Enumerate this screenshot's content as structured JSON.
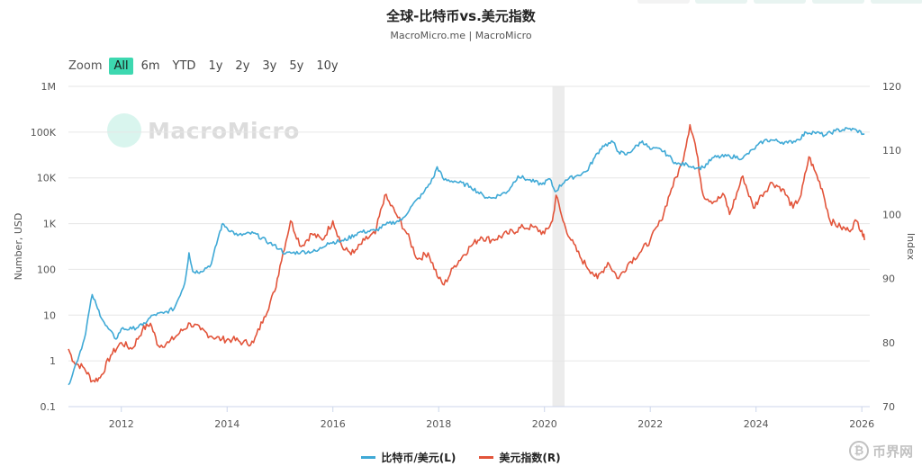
{
  "title": "全球-比特币vs.美元指数",
  "subtitle": "MacroMicro.me | MacroMicro",
  "watermark": "MacroMicro",
  "corner_watermark": "币界网",
  "zoom": {
    "label": "Zoom",
    "options": [
      "All",
      "6m",
      "YTD",
      "1y",
      "2y",
      "3y",
      "5y",
      "10y"
    ],
    "selected": "All"
  },
  "colors": {
    "btc": "#3fa9d6",
    "dxy": "#e2543a",
    "recession": "#ececec",
    "grid": "#e6e6e6"
  },
  "chart_data": {
    "type": "line",
    "title": "全球-比特币vs.美元指数",
    "x": {
      "type": "time",
      "range": [
        2011.0,
        2026.15
      ],
      "ticks": [
        "2012",
        "2014",
        "2016",
        "2018",
        "2020",
        "2022",
        "2024",
        "2026"
      ]
    },
    "y_left": {
      "label": "Number, USD",
      "scale": "log",
      "range": [
        0.1,
        1000000
      ],
      "ticks": [
        "0.1",
        "1",
        "10",
        "100",
        "1K",
        "10K",
        "100K",
        "1M"
      ]
    },
    "y_right": {
      "label": "Index",
      "scale": "linear",
      "range": [
        70,
        120
      ],
      "ticks": [
        "70",
        "80",
        "90",
        "100",
        "110",
        "120"
      ]
    },
    "shaded_periods": [
      [
        2020.15,
        2020.38
      ]
    ],
    "series": [
      {
        "name": "比特币/美元(L)",
        "axis": "left",
        "color": "#3fa9d6",
        "points": [
          [
            2011.0,
            0.3
          ],
          [
            2011.15,
            0.9
          ],
          [
            2011.3,
            3
          ],
          [
            2011.45,
            28
          ],
          [
            2011.55,
            14
          ],
          [
            2011.7,
            6
          ],
          [
            2011.9,
            3
          ],
          [
            2012.0,
            5
          ],
          [
            2012.2,
            5
          ],
          [
            2012.4,
            6
          ],
          [
            2012.6,
            10
          ],
          [
            2012.8,
            11
          ],
          [
            2013.0,
            14
          ],
          [
            2013.2,
            50
          ],
          [
            2013.28,
            230
          ],
          [
            2013.35,
            90
          ],
          [
            2013.5,
            90
          ],
          [
            2013.7,
            130
          ],
          [
            2013.85,
            600
          ],
          [
            2013.92,
            1000
          ],
          [
            2014.0,
            800
          ],
          [
            2014.2,
            550
          ],
          [
            2014.5,
            620
          ],
          [
            2014.8,
            380
          ],
          [
            2015.0,
            280
          ],
          [
            2015.1,
            220
          ],
          [
            2015.4,
            240
          ],
          [
            2015.7,
            250
          ],
          [
            2015.9,
            380
          ],
          [
            2016.2,
            420
          ],
          [
            2016.5,
            650
          ],
          [
            2016.8,
            700
          ],
          [
            2017.0,
            950
          ],
          [
            2017.3,
            1200
          ],
          [
            2017.5,
            2500
          ],
          [
            2017.7,
            4500
          ],
          [
            2017.9,
            10000
          ],
          [
            2017.97,
            17500
          ],
          [
            2018.1,
            9000
          ],
          [
            2018.3,
            8500
          ],
          [
            2018.6,
            6500
          ],
          [
            2018.85,
            4000
          ],
          [
            2019.0,
            3600
          ],
          [
            2019.3,
            5000
          ],
          [
            2019.5,
            11000
          ],
          [
            2019.7,
            9000
          ],
          [
            2019.95,
            7200
          ],
          [
            2020.1,
            9500
          ],
          [
            2020.2,
            5000
          ],
          [
            2020.4,
            9000
          ],
          [
            2020.6,
            11000
          ],
          [
            2020.8,
            14000
          ],
          [
            2020.95,
            28000
          ],
          [
            2021.1,
            50000
          ],
          [
            2021.3,
            60000
          ],
          [
            2021.4,
            37000
          ],
          [
            2021.55,
            32000
          ],
          [
            2021.7,
            45000
          ],
          [
            2021.85,
            64000
          ],
          [
            2022.0,
            42000
          ],
          [
            2022.2,
            42000
          ],
          [
            2022.35,
            30000
          ],
          [
            2022.5,
            20000
          ],
          [
            2022.7,
            19500
          ],
          [
            2022.9,
            16500
          ],
          [
            2023.0,
            17000
          ],
          [
            2023.2,
            28000
          ],
          [
            2023.5,
            30000
          ],
          [
            2023.75,
            27000
          ],
          [
            2023.95,
            42000
          ],
          [
            2024.15,
            65000
          ],
          [
            2024.3,
            67000
          ],
          [
            2024.6,
            58000
          ],
          [
            2024.8,
            69000
          ],
          [
            2024.95,
            98000
          ],
          [
            2025.1,
            100000
          ],
          [
            2025.3,
            85000
          ],
          [
            2025.5,
            107000
          ],
          [
            2025.75,
            118000
          ],
          [
            2025.9,
            110000
          ],
          [
            2026.05,
            90000
          ]
        ]
      },
      {
        "name": "美元指数(R)",
        "axis": "right",
        "color": "#e2543a",
        "points": [
          [
            2011.0,
            79
          ],
          [
            2011.1,
            77
          ],
          [
            2011.3,
            76
          ],
          [
            2011.45,
            74
          ],
          [
            2011.6,
            74.5
          ],
          [
            2011.8,
            78
          ],
          [
            2012.0,
            80
          ],
          [
            2012.2,
            79
          ],
          [
            2012.4,
            82
          ],
          [
            2012.55,
            83
          ],
          [
            2012.7,
            79.5
          ],
          [
            2012.9,
            80
          ],
          [
            2013.1,
            81.5
          ],
          [
            2013.3,
            83
          ],
          [
            2013.5,
            82
          ],
          [
            2013.7,
            81
          ],
          [
            2013.9,
            80.5
          ],
          [
            2014.1,
            80.5
          ],
          [
            2014.3,
            80
          ],
          [
            2014.5,
            80
          ],
          [
            2014.7,
            84
          ],
          [
            2014.9,
            88
          ],
          [
            2015.0,
            92
          ],
          [
            2015.2,
            99
          ],
          [
            2015.4,
            95
          ],
          [
            2015.6,
            97
          ],
          [
            2015.8,
            96
          ],
          [
            2016.0,
            99
          ],
          [
            2016.2,
            94.5
          ],
          [
            2016.4,
            94
          ],
          [
            2016.6,
            96
          ],
          [
            2016.8,
            97
          ],
          [
            2016.98,
            103
          ],
          [
            2017.2,
            100
          ],
          [
            2017.4,
            97
          ],
          [
            2017.6,
            93
          ],
          [
            2017.8,
            94
          ],
          [
            2018.0,
            90
          ],
          [
            2018.1,
            89
          ],
          [
            2018.3,
            92
          ],
          [
            2018.6,
            95
          ],
          [
            2018.8,
            96.5
          ],
          [
            2019.0,
            96
          ],
          [
            2019.3,
            97
          ],
          [
            2019.6,
            98
          ],
          [
            2019.8,
            98
          ],
          [
            2020.0,
            97
          ],
          [
            2020.15,
            99
          ],
          [
            2020.22,
            103
          ],
          [
            2020.35,
            99
          ],
          [
            2020.5,
            96
          ],
          [
            2020.7,
            93
          ],
          [
            2020.9,
            91
          ],
          [
            2021.0,
            90
          ],
          [
            2021.2,
            92.5
          ],
          [
            2021.4,
            90
          ],
          [
            2021.6,
            92.5
          ],
          [
            2021.8,
            94
          ],
          [
            2022.0,
            96
          ],
          [
            2022.2,
            99
          ],
          [
            2022.4,
            104
          ],
          [
            2022.6,
            108
          ],
          [
            2022.75,
            114
          ],
          [
            2022.85,
            111
          ],
          [
            2023.0,
            103
          ],
          [
            2023.2,
            102
          ],
          [
            2023.4,
            103
          ],
          [
            2023.5,
            100
          ],
          [
            2023.75,
            106
          ],
          [
            2023.95,
            101
          ],
          [
            2024.1,
            103
          ],
          [
            2024.3,
            105
          ],
          [
            2024.5,
            104
          ],
          [
            2024.7,
            101
          ],
          [
            2024.85,
            103
          ],
          [
            2025.0,
            109
          ],
          [
            2025.1,
            107
          ],
          [
            2025.25,
            104
          ],
          [
            2025.4,
            99
          ],
          [
            2025.6,
            98
          ],
          [
            2025.75,
            97.5
          ],
          [
            2025.9,
            99
          ],
          [
            2026.0,
            97.5
          ],
          [
            2026.05,
            96
          ]
        ]
      }
    ],
    "legend": {
      "position": "bottom-center",
      "entries": [
        "比特币/美元(L)",
        "美元指数(R)"
      ]
    }
  }
}
